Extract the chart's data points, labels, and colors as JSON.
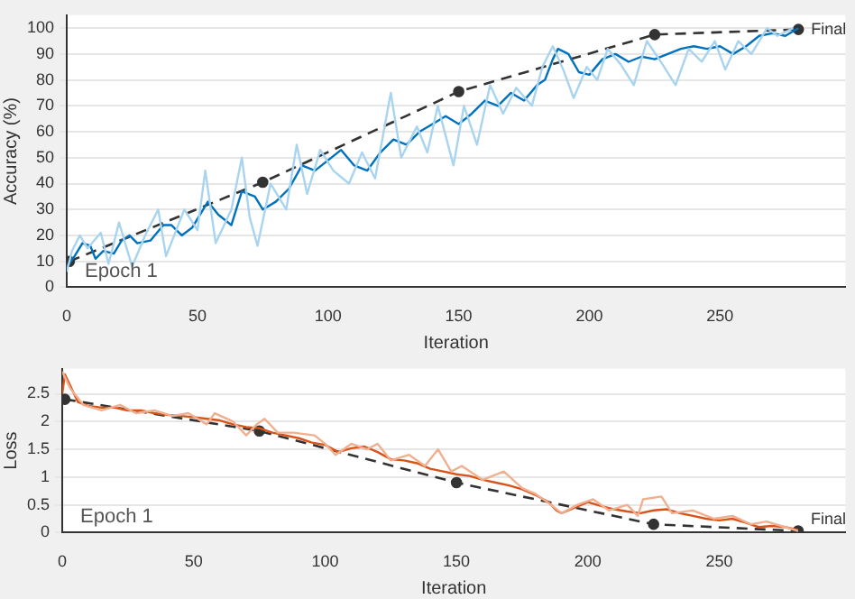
{
  "chart_data": [
    {
      "type": "line",
      "xlabel": "Iteration",
      "ylabel": "Accuracy (%)",
      "xlim": [
        0,
        298
      ],
      "xticks": [
        0,
        50,
        100,
        150,
        200,
        250
      ],
      "ylim": [
        0,
        105
      ],
      "yticks": [
        0,
        10,
        20,
        30,
        40,
        50,
        60,
        70,
        80,
        90,
        100
      ],
      "grid": "y",
      "legend": false,
      "annotations": [
        "Epoch 1",
        {
          "text": "Final",
          "x": 280,
          "y": 99.5
        }
      ],
      "series": [
        {
          "color": "#a8d4f0",
          "marker": "none",
          "line_style": "solid",
          "x": [
            0,
            2,
            5,
            8,
            13,
            16,
            20,
            25,
            30,
            35,
            38,
            45,
            50,
            53,
            57,
            63,
            67,
            70,
            73,
            78,
            84,
            88,
            92,
            97,
            102,
            108,
            113,
            118,
            124,
            128,
            134,
            138,
            142,
            148,
            152,
            157,
            162,
            167,
            172,
            178,
            182,
            186,
            190,
            194,
            199,
            203,
            207,
            212,
            217,
            222,
            228,
            233,
            238,
            243,
            248,
            252,
            257,
            262,
            268,
            272,
            278
          ],
          "values": [
            6,
            14,
            20,
            15,
            21,
            9,
            25,
            8,
            20,
            30,
            12,
            30,
            22,
            45,
            17,
            30,
            50,
            27,
            16,
            40,
            30,
            55,
            36,
            53,
            45,
            40,
            52,
            42,
            75,
            50,
            62,
            52,
            70,
            47,
            70,
            55,
            78,
            67,
            77,
            70,
            85,
            93,
            84,
            73,
            85,
            80,
            92,
            86,
            78,
            95,
            86,
            78,
            92,
            87,
            95,
            84,
            95,
            90,
            100,
            97,
            100
          ]
        },
        {
          "color": "#0072bd",
          "marker": "none",
          "line_style": "solid",
          "x": [
            0,
            3,
            6,
            9,
            11,
            14,
            18,
            21,
            24,
            27,
            32,
            37,
            40,
            44,
            48,
            54,
            58,
            63,
            67,
            72,
            75,
            80,
            85,
            90,
            95,
            100,
            105,
            110,
            115,
            120,
            125,
            130,
            135,
            140,
            145,
            150,
            155,
            160,
            165,
            170,
            175,
            180,
            183,
            186,
            188,
            192,
            196,
            200,
            205,
            210,
            215,
            220,
            225,
            230,
            235,
            240,
            245,
            250,
            255,
            260,
            265,
            270,
            275,
            280
          ],
          "values": [
            8,
            12,
            17,
            16,
            11,
            14,
            13,
            18,
            20,
            17,
            18,
            24,
            24,
            20,
            23,
            33,
            28,
            24,
            37,
            35,
            30,
            33,
            38,
            47,
            45,
            49,
            53,
            47,
            45,
            52,
            57,
            55,
            60,
            63,
            66,
            63,
            67,
            72,
            70,
            75,
            72,
            78,
            80,
            88,
            92,
            90,
            83,
            82,
            88,
            90,
            87,
            89,
            88,
            90,
            92,
            93,
            92,
            93,
            90,
            93,
            97,
            98,
            97,
            100
          ]
        },
        {
          "color": "#333333",
          "marker": "circle",
          "line_style": "dashed",
          "x": [
            1,
            75,
            150,
            225,
            280
          ],
          "values": [
            10,
            40.5,
            75.5,
            97.5,
            99.5
          ]
        }
      ]
    },
    {
      "type": "line",
      "xlabel": "Iteration",
      "ylabel": "Loss",
      "xlim": [
        0,
        298
      ],
      "xticks": [
        0,
        50,
        100,
        150,
        200,
        250
      ],
      "ylim": [
        0,
        2.95
      ],
      "yticks": [
        0,
        0.5,
        1,
        1.5,
        2,
        2.5
      ],
      "grid": "y",
      "legend": false,
      "annotations": [
        "Epoch 1",
        {
          "text": "Final",
          "x": 280,
          "y": 0.03
        }
      ],
      "series": [
        {
          "color": "#f0b090",
          "marker": "none",
          "line_style": "solid",
          "x": [
            0,
            3,
            8,
            15,
            22,
            28,
            35,
            42,
            48,
            55,
            58,
            65,
            70,
            74,
            77,
            82,
            88,
            96,
            100,
            104,
            110,
            116,
            120,
            125,
            132,
            138,
            143,
            148,
            152,
            160,
            168,
            175,
            180,
            186,
            190,
            196,
            202,
            208,
            215,
            219,
            221,
            228,
            232,
            240,
            248,
            255,
            262,
            268,
            275,
            280
          ],
          "values": [
            2.9,
            2.6,
            2.3,
            2.2,
            2.3,
            2.15,
            2.2,
            2.1,
            2.15,
            1.95,
            2.15,
            2,
            1.75,
            1.95,
            2.05,
            1.8,
            1.8,
            1.75,
            1.6,
            1.4,
            1.6,
            1.5,
            1.6,
            1.3,
            1.4,
            1.2,
            1.5,
            1.1,
            1.2,
            0.95,
            1.1,
            0.8,
            0.7,
            0.5,
            0.35,
            0.5,
            0.6,
            0.4,
            0.5,
            0.3,
            0.6,
            0.65,
            0.35,
            0.4,
            0.25,
            0.3,
            0.15,
            0.2,
            0.1,
            0.03
          ]
        },
        {
          "color": "#d95319",
          "marker": "none",
          "line_style": "solid",
          "x": [
            0,
            1,
            3,
            6,
            10,
            15,
            20,
            25,
            30,
            35,
            40,
            45,
            50,
            55,
            60,
            65,
            70,
            75,
            80,
            85,
            90,
            95,
            100,
            105,
            110,
            115,
            120,
            125,
            130,
            135,
            140,
            145,
            150,
            155,
            160,
            165,
            170,
            175,
            180,
            185,
            188,
            190,
            195,
            200,
            205,
            210,
            215,
            220,
            225,
            230,
            235,
            240,
            245,
            250,
            255,
            260,
            265,
            270,
            275,
            280
          ],
          "values": [
            2.5,
            2.85,
            2.65,
            2.35,
            2.28,
            2.25,
            2.25,
            2.2,
            2.2,
            2.15,
            2.12,
            2.1,
            2.08,
            2.05,
            2.02,
            1.95,
            1.9,
            1.88,
            1.8,
            1.75,
            1.7,
            1.62,
            1.58,
            1.45,
            1.52,
            1.55,
            1.45,
            1.32,
            1.3,
            1.25,
            1.15,
            1.1,
            1.05,
            1.02,
            0.95,
            0.9,
            0.85,
            0.78,
            0.68,
            0.55,
            0.4,
            0.35,
            0.45,
            0.55,
            0.48,
            0.42,
            0.38,
            0.35,
            0.4,
            0.42,
            0.35,
            0.3,
            0.25,
            0.22,
            0.25,
            0.18,
            0.1,
            0.12,
            0.1,
            0.05
          ]
        },
        {
          "color": "#333333",
          "marker": "circle",
          "line_style": "dashed",
          "x": [
            1,
            75,
            150,
            225,
            280
          ],
          "values": [
            2.4,
            1.83,
            0.9,
            0.15,
            0.03
          ]
        }
      ]
    }
  ]
}
